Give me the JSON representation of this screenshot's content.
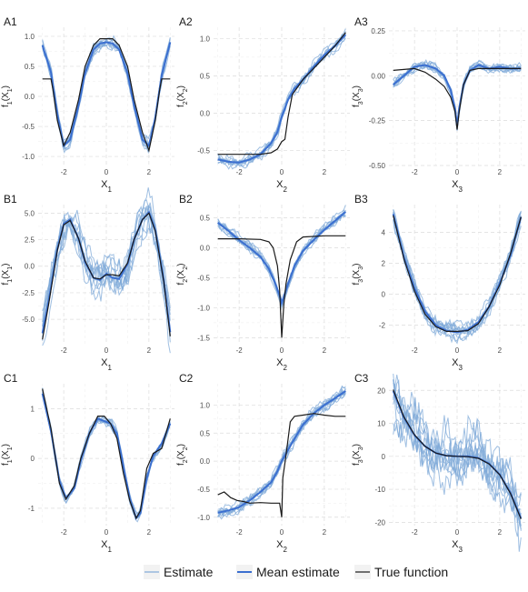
{
  "legend": {
    "items": [
      {
        "label": "Estimate",
        "color": "#7fa9d8"
      },
      {
        "label": "Mean estimate",
        "color": "#3b6fd0"
      },
      {
        "label": "True function",
        "color": "#1a1a1a"
      }
    ]
  },
  "chart_data": [
    {
      "id": "A1",
      "title": "A1",
      "type": "line",
      "xlabel": "X",
      "xsub": "1",
      "ylabel": "f",
      "ysub": "1",
      "yarg": "X",
      "yargsub": "1",
      "xlim": [
        -3.2,
        3.2
      ],
      "ylim": [
        -1.15,
        1.15
      ],
      "xticks": [
        -2,
        0,
        2
      ],
      "yticks": [
        -1.0,
        -0.5,
        0.0,
        0.5,
        1.0
      ],
      "ytick_labels": [
        "-1.0",
        "-0.5",
        "0.0",
        "0.5",
        "1.0"
      ],
      "xtick_labels": [
        "-2",
        "0",
        "2"
      ],
      "true_x": [
        -3.0,
        -2.6,
        -2.5,
        -2.3,
        -2.0,
        -1.7,
        -1.3,
        -1.0,
        -0.6,
        -0.3,
        0,
        0.3,
        0.6,
        1.0,
        1.3,
        1.7,
        2.0,
        2.3,
        2.5,
        2.6,
        3.0
      ],
      "true_y": [
        0.29,
        0.29,
        0.1,
        -0.4,
        -0.82,
        -0.6,
        -0.05,
        0.5,
        0.85,
        0.96,
        0.96,
        0.96,
        0.85,
        0.5,
        -0.05,
        -0.6,
        -0.9,
        -0.4,
        0.1,
        0.29,
        0.29
      ],
      "mean_x": [
        -3.0,
        -2.6,
        -2.3,
        -2.0,
        -1.7,
        -1.3,
        -1.0,
        -0.6,
        -0.3,
        0,
        0.3,
        0.6,
        1.0,
        1.3,
        1.7,
        2.0,
        2.3,
        2.6,
        3.0
      ],
      "mean_y": [
        0.85,
        0.4,
        -0.3,
        -0.82,
        -0.72,
        -0.15,
        0.38,
        0.78,
        0.88,
        0.9,
        0.88,
        0.78,
        0.38,
        -0.15,
        -0.72,
        -0.82,
        -0.35,
        0.35,
        0.9
      ],
      "est_spread": 0.08
    },
    {
      "id": "A2",
      "title": "A2",
      "type": "line",
      "xlabel": "X",
      "xsub": "2",
      "ylabel": "f",
      "ysub": "2",
      "yarg": "X",
      "yargsub": "2",
      "xlim": [
        -3.2,
        3.2
      ],
      "ylim": [
        -0.7,
        1.15
      ],
      "xticks": [
        -2,
        0,
        2
      ],
      "yticks": [
        -0.5,
        0.0,
        0.5,
        1.0
      ],
      "ytick_labels": [
        "-0.5",
        "0.0",
        "0.5",
        "1.0"
      ],
      "xtick_labels": [
        "-2",
        "0",
        "2"
      ],
      "true_x": [
        -3.0,
        -2.0,
        -1.0,
        -0.5,
        -0.2,
        0,
        0.15,
        0.3,
        0.5,
        1.0,
        1.5,
        2.0,
        2.5,
        3.0
      ],
      "true_y": [
        -0.55,
        -0.55,
        -0.55,
        -0.53,
        -0.48,
        -0.38,
        -0.35,
        -0.05,
        0.25,
        0.45,
        0.6,
        0.75,
        0.9,
        1.08
      ],
      "mean_x": [
        -3.0,
        -2.5,
        -2.0,
        -1.5,
        -1.0,
        -0.5,
        -0.2,
        0,
        0.3,
        0.6,
        1.0,
        1.5,
        2.0,
        2.5,
        3.0
      ],
      "mean_y": [
        -0.62,
        -0.65,
        -0.66,
        -0.62,
        -0.55,
        -0.4,
        -0.25,
        -0.05,
        0.18,
        0.33,
        0.45,
        0.62,
        0.78,
        0.9,
        1.05
      ],
      "est_spread": 0.07
    },
    {
      "id": "A3",
      "title": "A3",
      "type": "line",
      "xlabel": "X",
      "xsub": "3",
      "ylabel": "f",
      "ysub": "3",
      "yarg": "X",
      "yargsub": "3",
      "xlim": [
        -3.2,
        3.2
      ],
      "ylim": [
        -0.5,
        0.27
      ],
      "xticks": [
        -2,
        0,
        2
      ],
      "yticks": [
        -0.5,
        -0.25,
        0.0,
        0.25
      ],
      "ytick_labels": [
        "-0.50",
        "-0.25",
        "0.00",
        "0.25"
      ],
      "xtick_labels": [
        "-2",
        "0",
        "2"
      ],
      "true_x": [
        -3.0,
        -2.0,
        -1.5,
        -1.0,
        -0.6,
        -0.3,
        -0.1,
        0,
        0.1,
        0.3,
        0.6,
        1.0,
        2.0,
        3.0
      ],
      "true_y": [
        0.03,
        0.04,
        0.02,
        -0.02,
        -0.06,
        -0.12,
        -0.2,
        -0.3,
        -0.2,
        -0.05,
        0.03,
        0.04,
        0.04,
        0.04
      ],
      "mean_x": [
        -3.0,
        -2.5,
        -2.0,
        -1.5,
        -1.0,
        -0.6,
        -0.3,
        -0.1,
        0,
        0.1,
        0.3,
        0.6,
        1.0,
        1.5,
        2.0,
        2.5,
        3.0
      ],
      "mean_y": [
        -0.05,
        0.0,
        0.05,
        0.06,
        0.04,
        0.0,
        -0.08,
        -0.18,
        -0.28,
        -0.18,
        -0.05,
        0.03,
        0.06,
        0.04,
        0.05,
        0.04,
        0.04
      ],
      "est_spread": 0.06
    },
    {
      "id": "B1",
      "title": "B1",
      "type": "line",
      "xlabel": "X",
      "xsub": "1",
      "ylabel": "f",
      "ysub": "1",
      "yarg": "X",
      "yargsub": "1",
      "xlim": [
        -3.2,
        3.2
      ],
      "ylim": [
        -7.3,
        5.8
      ],
      "xticks": [
        -2,
        0,
        2
      ],
      "yticks": [
        -5.0,
        -2.5,
        0.0,
        2.5,
        5.0
      ],
      "ytick_labels": [
        "-5.0",
        "-2.5",
        "0.0",
        "2.5",
        "5.0"
      ],
      "xtick_labels": [
        "-2",
        "0",
        "2"
      ],
      "true_x": [
        -3.0,
        -2.7,
        -2.3,
        -2.0,
        -1.7,
        -1.3,
        -1.0,
        -0.6,
        -0.3,
        0,
        0.3,
        0.6,
        1.0,
        1.3,
        1.7,
        2.0,
        2.3,
        2.7,
        3.0
      ],
      "true_y": [
        -6.9,
        -3.5,
        1.5,
        3.9,
        4.3,
        2.6,
        0.5,
        -1.1,
        -1.2,
        -0.8,
        -0.8,
        -0.9,
        0.3,
        2.5,
        4.4,
        5.0,
        3.3,
        -1.5,
        -6.6
      ],
      "mean_x": [
        -3.0,
        -2.7,
        -2.3,
        -2.0,
        -1.7,
        -1.3,
        -1.0,
        -0.6,
        -0.3,
        0,
        0.3,
        0.6,
        1.0,
        1.3,
        1.7,
        2.0,
        2.3,
        2.7,
        3.0
      ],
      "mean_y": [
        -6.3,
        -3.2,
        1.6,
        4.0,
        4.4,
        2.6,
        0.4,
        -1.1,
        -1.3,
        -0.7,
        -1.1,
        -1.2,
        0.2,
        2.5,
        4.4,
        5.1,
        3.4,
        -1.4,
        -6.2
      ],
      "est_spread": 0.25
    },
    {
      "id": "B2",
      "title": "B2",
      "type": "line",
      "xlabel": "X",
      "xsub": "2",
      "ylabel": "f",
      "ysub": "2",
      "yarg": "X",
      "yargsub": "2",
      "xlim": [
        -3.2,
        3.2
      ],
      "ylim": [
        -1.6,
        0.72
      ],
      "xticks": [
        -2,
        0,
        2
      ],
      "yticks": [
        -1.5,
        -1.0,
        -0.5,
        0.0,
        0.5
      ],
      "ytick_labels": [
        "-1.5",
        "-1.0",
        "-0.5",
        "0.0",
        "0.5"
      ],
      "xtick_labels": [
        "-2",
        "0",
        "2"
      ],
      "true_x": [
        -3.0,
        -2.0,
        -1.0,
        -0.6,
        -0.4,
        -0.2,
        -0.1,
        0,
        0.1,
        0.2,
        0.4,
        0.7,
        1.0,
        2.0,
        3.0
      ],
      "true_y": [
        0.15,
        0.15,
        0.14,
        0.1,
        0.0,
        -0.3,
        -0.7,
        -1.5,
        -0.95,
        -0.6,
        -0.2,
        0.1,
        0.18,
        0.2,
        0.2
      ],
      "mean_x": [
        -3.0,
        -2.5,
        -2.0,
        -1.5,
        -1.0,
        -0.6,
        -0.3,
        -0.1,
        0,
        0.1,
        0.3,
        0.6,
        1.0,
        1.5,
        2.0,
        2.5,
        3.0
      ],
      "mean_y": [
        0.42,
        0.28,
        0.13,
        0.0,
        -0.15,
        -0.35,
        -0.6,
        -0.8,
        -0.92,
        -0.82,
        -0.6,
        -0.3,
        -0.05,
        0.13,
        0.3,
        0.45,
        0.6
      ],
      "est_spread": 0.07
    },
    {
      "id": "B3",
      "title": "B3",
      "type": "line",
      "xlabel": "X",
      "xsub": "3",
      "ylabel": "f",
      "ysub": "3",
      "yarg": "X",
      "yargsub": "3",
      "xlim": [
        -3.2,
        3.2
      ],
      "ylim": [
        -3.2,
        5.8
      ],
      "xticks": [
        -2,
        0,
        2
      ],
      "yticks": [
        -2,
        0,
        2,
        4
      ],
      "ytick_labels": [
        "-2",
        "0",
        "2",
        "4"
      ],
      "xtick_labels": [
        "-2",
        "0",
        "2"
      ],
      "true_x": [
        -3.0,
        -2.5,
        -2.0,
        -1.5,
        -1.0,
        -0.5,
        0,
        0.5,
        1.0,
        1.5,
        2.0,
        2.5,
        3.0
      ],
      "true_y": [
        5.1,
        2.3,
        0.2,
        -1.3,
        -2.1,
        -2.4,
        -2.4,
        -2.35,
        -1.9,
        -0.8,
        0.6,
        2.6,
        5.0
      ],
      "mean_x": [
        -3.0,
        -2.5,
        -2.0,
        -1.5,
        -1.0,
        -0.5,
        0,
        0.5,
        1.0,
        1.5,
        2.0,
        2.5,
        3.0
      ],
      "mean_y": [
        5.2,
        2.4,
        0.4,
        -1.1,
        -2.0,
        -2.35,
        -2.45,
        -2.3,
        -1.8,
        -0.8,
        0.7,
        2.5,
        5.0
      ],
      "est_spread": 0.12
    },
    {
      "id": "C1",
      "title": "C1",
      "type": "line",
      "xlabel": "X",
      "xsub": "1",
      "ylabel": "f",
      "ysub": "1",
      "yarg": "X",
      "yargsub": "1",
      "xlim": [
        -3.2,
        3.2
      ],
      "ylim": [
        -1.35,
        1.5
      ],
      "xticks": [
        -2,
        0,
        2
      ],
      "yticks": [
        -1,
        0,
        1
      ],
      "ytick_labels": [
        "-1",
        "0",
        "1"
      ],
      "xtick_labels": [
        "-2",
        "0",
        "2"
      ],
      "true_x": [
        -3.0,
        -2.6,
        -2.2,
        -1.9,
        -1.5,
        -1.2,
        -0.8,
        -0.4,
        -0.1,
        0.2,
        0.5,
        0.8,
        1.1,
        1.4,
        1.6,
        1.9,
        2.2,
        2.6,
        3.0
      ],
      "true_y": [
        1.4,
        0.6,
        -0.5,
        -0.82,
        -0.55,
        0.0,
        0.5,
        0.85,
        0.85,
        0.7,
        0.4,
        -0.3,
        -0.85,
        -1.2,
        -1.05,
        -0.2,
        0.1,
        0.2,
        0.8
      ],
      "mean_x": [
        -3.0,
        -2.6,
        -2.2,
        -1.9,
        -1.5,
        -1.2,
        -0.8,
        -0.4,
        -0.1,
        0.2,
        0.5,
        0.8,
        1.1,
        1.4,
        1.6,
        1.9,
        2.2,
        2.6,
        3.0
      ],
      "mean_y": [
        1.3,
        0.55,
        -0.45,
        -0.8,
        -0.6,
        -0.05,
        0.5,
        0.8,
        0.75,
        0.7,
        0.5,
        -0.15,
        -0.8,
        -1.2,
        -1.1,
        -0.4,
        0.05,
        0.3,
        0.7
      ],
      "est_spread": 0.06
    },
    {
      "id": "C2",
      "title": "C2",
      "type": "line",
      "xlabel": "X",
      "xsub": "2",
      "ylabel": "f",
      "ysub": "2",
      "yarg": "X",
      "yargsub": "2",
      "xlim": [
        -3.2,
        3.2
      ],
      "ylim": [
        -1.15,
        1.38
      ],
      "xticks": [
        -2,
        0,
        2
      ],
      "yticks": [
        -1.0,
        -0.5,
        0.0,
        0.5,
        1.0
      ],
      "ytick_labels": [
        "-1.0",
        "-0.5",
        "0.0",
        "0.5",
        "1.0"
      ],
      "xtick_labels": [
        "-2",
        "0",
        "2"
      ],
      "true_x": [
        -3.0,
        -2.7,
        -2.4,
        -2.1,
        -1.8,
        -1.5,
        -1.0,
        -0.5,
        -0.1,
        0,
        0.05,
        0.2,
        0.4,
        0.6,
        1.0,
        1.5,
        2.0,
        2.5,
        3.0
      ],
      "true_y": [
        -0.6,
        -0.55,
        -0.65,
        -0.7,
        -0.72,
        -0.75,
        -0.74,
        -0.75,
        -0.75,
        -1.0,
        -0.3,
        0.1,
        0.7,
        0.8,
        0.82,
        0.85,
        0.82,
        0.8,
        0.8
      ],
      "mean_x": [
        -3.0,
        -2.5,
        -2.0,
        -1.5,
        -1.0,
        -0.5,
        -0.2,
        0,
        0.3,
        0.6,
        1.0,
        1.5,
        2.0,
        2.5,
        3.0
      ],
      "mean_y": [
        -0.92,
        -0.88,
        -0.82,
        -0.7,
        -0.55,
        -0.38,
        -0.18,
        0.0,
        0.2,
        0.4,
        0.65,
        0.85,
        1.0,
        1.12,
        1.25
      ],
      "est_spread": 0.08
    },
    {
      "id": "C3",
      "title": "C3",
      "type": "line",
      "xlabel": "X",
      "xsub": "3",
      "ylabel": "f",
      "ysub": "3",
      "yarg": "X",
      "yargsub": "3",
      "xlim": [
        -3.2,
        3.2
      ],
      "ylim": [
        -21,
        22
      ],
      "xticks": [
        -2,
        0,
        2
      ],
      "yticks": [
        -20,
        -10,
        0,
        10,
        20
      ],
      "ytick_labels": [
        "-20",
        "-10",
        "0",
        "10",
        "20"
      ],
      "xtick_labels": [
        "-2",
        "0",
        "2"
      ],
      "true_x": [
        -3.0,
        -2.5,
        -2.0,
        -1.5,
        -1.0,
        -0.5,
        0,
        0.5,
        1.0,
        1.5,
        2.0,
        2.5,
        3.0
      ],
      "true_y": [
        20.2,
        12.0,
        6.5,
        3.0,
        1.0,
        0.2,
        0.0,
        -0.1,
        -0.6,
        -2.3,
        -5.6,
        -11.2,
        -19.0
      ],
      "mean_x": [
        -3.0,
        -2.5,
        -2.0,
        -1.5,
        -1.0,
        -0.5,
        0,
        0.5,
        1.0,
        1.5,
        2.0,
        2.5,
        3.0
      ],
      "mean_y": [
        19.8,
        11.8,
        6.4,
        3.0,
        1.0,
        0.2,
        0.0,
        0.0,
        -0.5,
        -2.2,
        -5.5,
        -11.0,
        -18.8
      ],
      "est_spread": 0.4
    }
  ]
}
